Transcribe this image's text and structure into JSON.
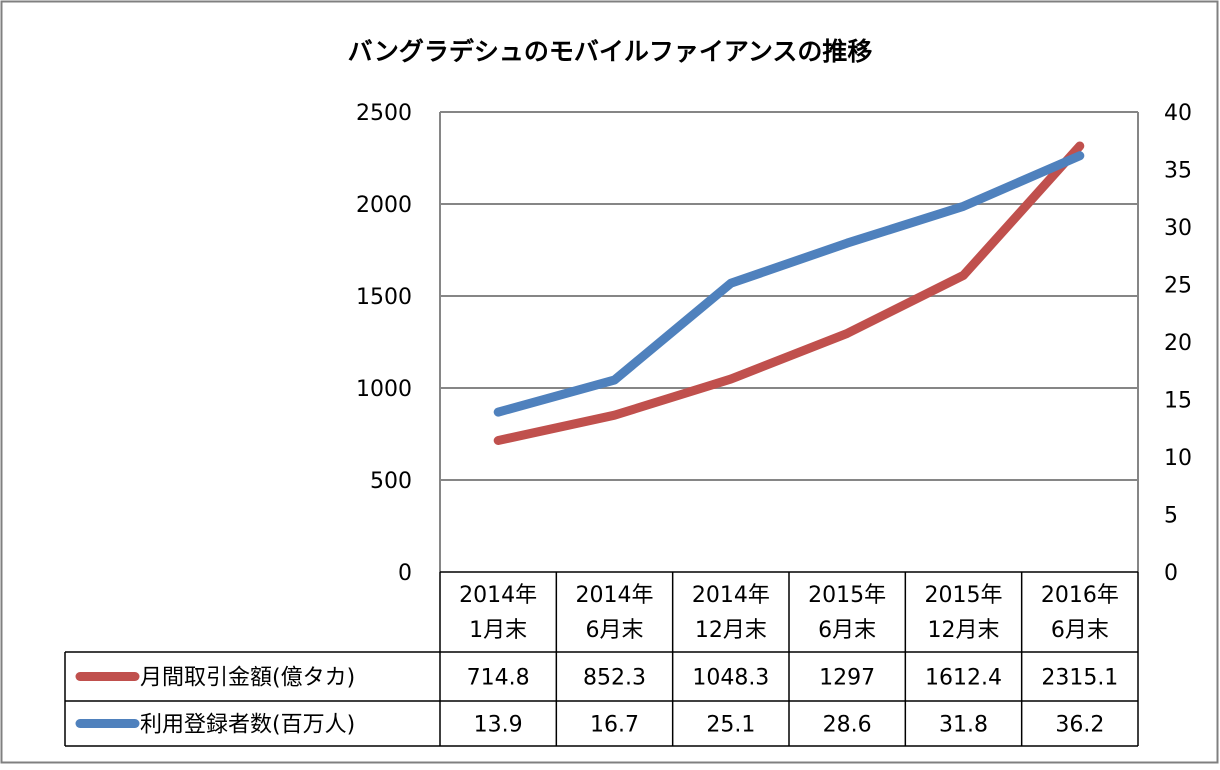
{
  "chart_data": {
    "type": "line",
    "title": "バングラデシュのモバイルファイアンスの推移",
    "categories": [
      [
        "2014年",
        "1月末"
      ],
      [
        "2014年",
        "6月末"
      ],
      [
        "2014年",
        "12月末"
      ],
      [
        "2015年",
        "6月末"
      ],
      [
        "2015年",
        "12月末"
      ],
      [
        "2016年",
        "6月末"
      ]
    ],
    "y_left": {
      "ylim": [
        0,
        2500
      ],
      "ticks": [
        "0",
        "500",
        "1000",
        "1500",
        "2000",
        "2500"
      ]
    },
    "y_right": {
      "ylim": [
        0,
        40
      ],
      "ticks": [
        "0",
        "5",
        "10",
        "15",
        "20",
        "25",
        "30",
        "35",
        "40"
      ]
    },
    "grid": true,
    "series": [
      {
        "name": "月間取引金額(億タカ)",
        "axis": "left",
        "color": "#c0504d",
        "values": [
          714.8,
          852.3,
          1048.3,
          1297,
          1612.4,
          2315.1
        ],
        "labels": [
          "714.8",
          "852.3",
          "1048.3",
          "1297",
          "1612.4",
          "2315.1"
        ]
      },
      {
        "name": "利用登録者数(百万人)",
        "axis": "right",
        "color": "#4f81bd",
        "values": [
          13.9,
          16.7,
          25.1,
          28.6,
          31.8,
          36.2
        ],
        "labels": [
          "13.9",
          "16.7",
          "25.1",
          "28.6",
          "31.8",
          "36.2"
        ]
      }
    ]
  }
}
